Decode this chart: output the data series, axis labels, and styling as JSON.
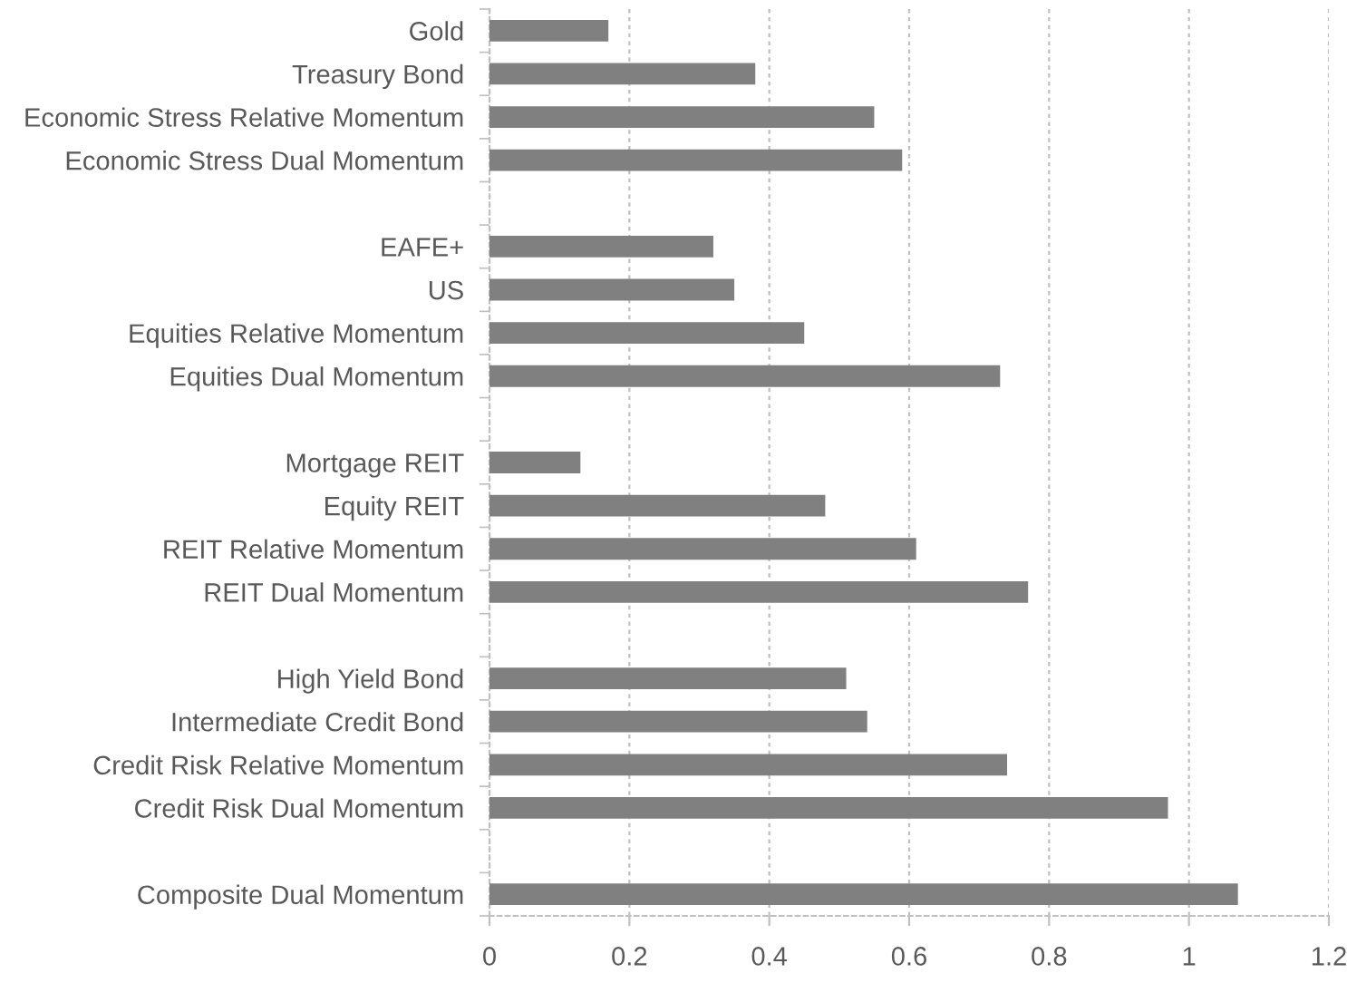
{
  "chart_data": {
    "type": "bar",
    "orientation": "horizontal",
    "categories": [
      "Gold",
      "Treasury Bond",
      "Economic Stress Relative Momentum",
      "Economic Stress Dual Momentum",
      null,
      "EAFE+",
      "US",
      "Equities Relative Momentum",
      "Equities Dual Momentum",
      null,
      "Mortgage REIT",
      "Equity REIT",
      "REIT Relative Momentum",
      "REIT Dual Momentum",
      null,
      "High Yield Bond",
      "Intermediate Credit Bond",
      "Credit Risk Relative Momentum",
      "Credit Risk Dual Momentum",
      null,
      "Composite Dual Momentum"
    ],
    "values": [
      0.17,
      0.38,
      0.55,
      0.59,
      null,
      0.32,
      0.35,
      0.45,
      0.73,
      null,
      0.13,
      0.48,
      0.61,
      0.77,
      null,
      0.51,
      0.54,
      0.74,
      0.97,
      null,
      1.07
    ],
    "color": "#808080",
    "xlim": [
      0,
      1.2
    ],
    "xticks": [
      0,
      0.2,
      0.4,
      0.6,
      0.8,
      1,
      1.2
    ],
    "grid": "x"
  }
}
